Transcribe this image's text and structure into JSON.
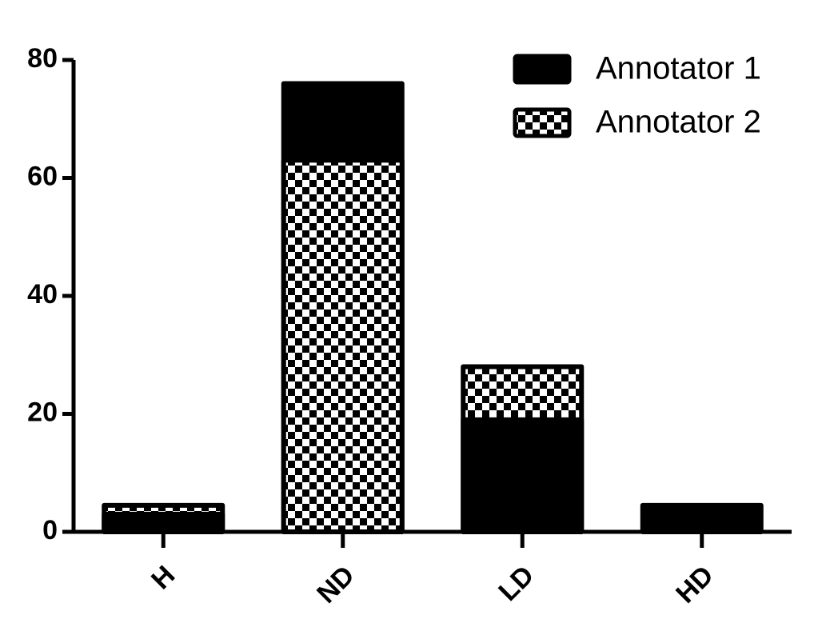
{
  "chart_data": {
    "type": "bar",
    "mode": "overlap",
    "categories": [
      "H",
      "ND",
      "LD",
      "HD"
    ],
    "series": [
      {
        "name": "Annotator 1",
        "color": "#000000",
        "pattern": "solid",
        "values": [
          3,
          76,
          19,
          4.5
        ]
      },
      {
        "name": "Annotator 2",
        "color": "#000000",
        "pattern": "checker",
        "values": [
          4.5,
          63,
          28,
          0
        ]
      }
    ],
    "ylim": [
      0,
      80
    ],
    "yticks": [
      0,
      20,
      40,
      60,
      80
    ],
    "grid": false,
    "legend": "top-right"
  }
}
